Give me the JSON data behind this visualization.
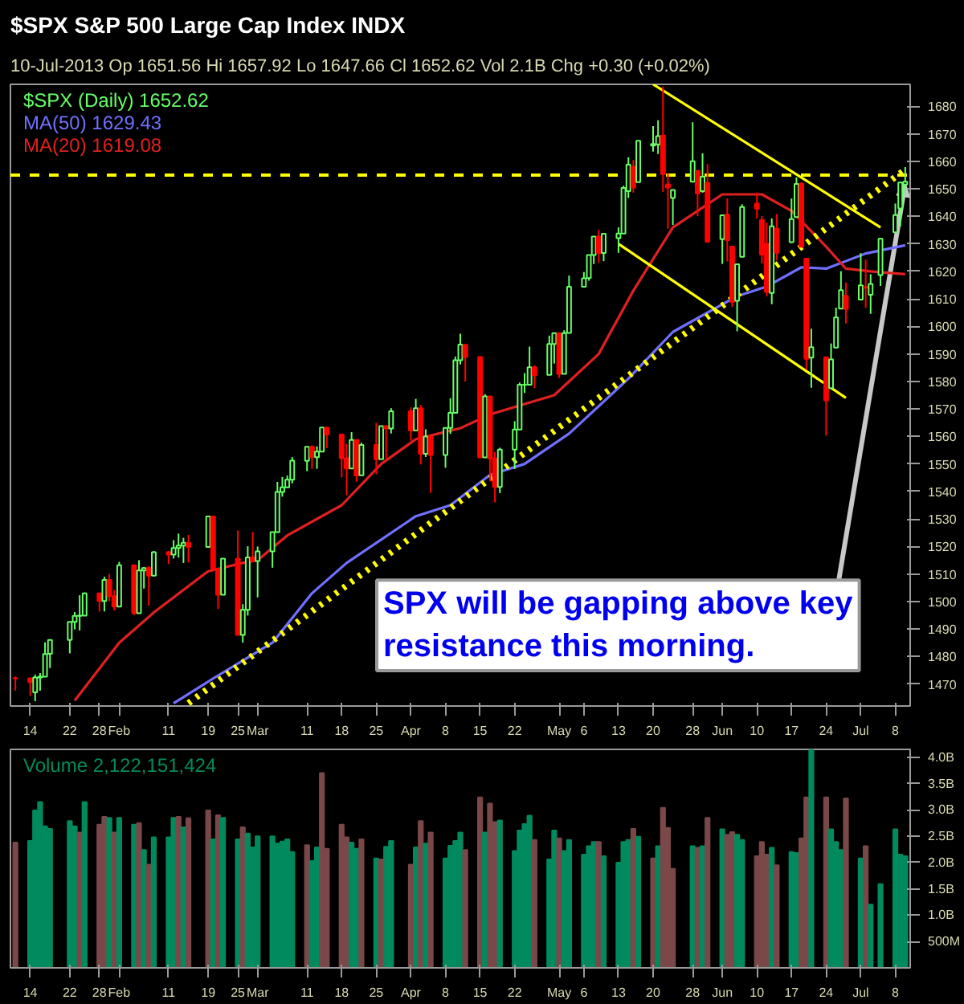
{
  "chart_data": [
    {
      "type": "candlestick",
      "title": "$SPX S&P 500 Large Cap Index INDX",
      "subtitle": "10-Jul-2013 Op 1651.56 Hi 1657.92 Lo 1647.66 Cl 1652.62 Vol 2.1B Chg +0.30 (+0.02%)",
      "x": [
        "2013-01-11",
        "2013-01-14",
        "2013-01-15",
        "2013-01-16",
        "2013-01-17",
        "2013-01-18",
        "2013-01-22",
        "2013-01-23",
        "2013-01-24",
        "2013-01-25",
        "2013-01-28",
        "2013-01-29",
        "2013-01-30",
        "2013-01-31",
        "2013-02-01",
        "2013-02-04",
        "2013-02-05",
        "2013-02-06",
        "2013-02-07",
        "2013-02-08",
        "2013-02-11",
        "2013-02-12",
        "2013-02-13",
        "2013-02-14",
        "2013-02-15",
        "2013-02-19",
        "2013-02-20",
        "2013-02-21",
        "2013-02-22",
        "2013-02-25",
        "2013-02-26",
        "2013-02-27",
        "2013-02-28",
        "2013-03-01",
        "2013-03-04",
        "2013-03-05",
        "2013-03-06",
        "2013-03-07",
        "2013-03-08",
        "2013-03-11",
        "2013-03-12",
        "2013-03-13",
        "2013-03-14",
        "2013-03-15",
        "2013-03-18",
        "2013-03-19",
        "2013-03-20",
        "2013-03-21",
        "2013-03-22",
        "2013-03-25",
        "2013-03-26",
        "2013-03-27",
        "2013-03-28",
        "2013-04-01",
        "2013-04-02",
        "2013-04-03",
        "2013-04-04",
        "2013-04-05",
        "2013-04-08",
        "2013-04-09",
        "2013-04-10",
        "2013-04-11",
        "2013-04-12",
        "2013-04-15",
        "2013-04-16",
        "2013-04-17",
        "2013-04-18",
        "2013-04-19",
        "2013-04-22",
        "2013-04-23",
        "2013-04-24",
        "2013-04-25",
        "2013-04-26",
        "2013-04-29",
        "2013-04-30",
        "2013-05-01",
        "2013-05-02",
        "2013-05-03",
        "2013-05-06",
        "2013-05-07",
        "2013-05-08",
        "2013-05-09",
        "2013-05-10",
        "2013-05-13",
        "2013-05-14",
        "2013-05-15",
        "2013-05-16",
        "2013-05-17",
        "2013-05-20",
        "2013-05-21",
        "2013-05-22",
        "2013-05-23",
        "2013-05-24",
        "2013-05-28",
        "2013-05-29",
        "2013-05-30",
        "2013-05-31",
        "2013-06-03",
        "2013-06-04",
        "2013-06-05",
        "2013-06-06",
        "2013-06-07",
        "2013-06-10",
        "2013-06-11",
        "2013-06-12",
        "2013-06-13",
        "2013-06-14",
        "2013-06-17",
        "2013-06-18",
        "2013-06-19",
        "2013-06-20",
        "2013-06-21",
        "2013-06-24",
        "2013-06-25",
        "2013-06-26",
        "2013-06-27",
        "2013-06-28",
        "2013-07-01",
        "2013-07-02",
        "2013-07-03",
        "2013-07-05",
        "2013-07-08",
        "2013-07-09",
        "2013-07-10"
      ],
      "xticks": [
        {
          "value": "2013-01-14",
          "label": "14"
        },
        {
          "value": "2013-01-22",
          "label": "22"
        },
        {
          "value": "2013-01-28",
          "label": "28"
        },
        {
          "value": "2013-02-01",
          "label": "Feb"
        },
        {
          "value": "2013-02-11",
          "label": "11"
        },
        {
          "value": "2013-02-19",
          "label": "19"
        },
        {
          "value": "2013-02-25",
          "label": "25"
        },
        {
          "value": "2013-03-01",
          "label": "Mar"
        },
        {
          "value": "2013-03-11",
          "label": "11"
        },
        {
          "value": "2013-03-18",
          "label": "18"
        },
        {
          "value": "2013-03-25",
          "label": "25"
        },
        {
          "value": "2013-04-01",
          "label": "Apr"
        },
        {
          "value": "2013-04-08",
          "label": "8"
        },
        {
          "value": "2013-04-15",
          "label": "15"
        },
        {
          "value": "2013-04-22",
          "label": "22"
        },
        {
          "value": "2013-05-01",
          "label": "May"
        },
        {
          "value": "2013-05-06",
          "label": "6"
        },
        {
          "value": "2013-05-13",
          "label": "13"
        },
        {
          "value": "2013-05-20",
          "label": "20"
        },
        {
          "value": "2013-05-28",
          "label": "28"
        },
        {
          "value": "2013-06-03",
          "label": "Jun"
        },
        {
          "value": "2013-06-10",
          "label": "10"
        },
        {
          "value": "2013-06-17",
          "label": "17"
        },
        {
          "value": "2013-06-24",
          "label": "24"
        },
        {
          "value": "2013-07-01",
          "label": "Jul"
        },
        {
          "value": "2013-07-08",
          "label": "8"
        }
      ],
      "xlim": [
        "2013-01-10",
        "2013-07-11"
      ],
      "ylim": [
        1462,
        1688
      ],
      "yticks": [
        1470,
        1480,
        1490,
        1500,
        1510,
        1520,
        1530,
        1540,
        1550,
        1560,
        1570,
        1580,
        1590,
        1600,
        1610,
        1620,
        1630,
        1640,
        1650,
        1660,
        1670,
        1680
      ],
      "legend": "top left",
      "ref_lines": [
        {
          "axis": "y",
          "value": 1655,
          "color": "#ffff00",
          "line_style": "dashed"
        }
      ],
      "annotations": [
        {
          "text": "SPX will be gapping above key resistance this morning.",
          "x": "2013-07-10",
          "y": 1652
        }
      ],
      "series": [
        {
          "type": "line",
          "color": "#7070ff",
          "name": "MA(50) 1629.43",
          "x": [
            "2013-02-12",
            "2013-02-20",
            "2013-03-04",
            "2013-03-12",
            "2013-03-19",
            "2013-04-02",
            "2013-04-09",
            "2013-04-17",
            "2013-04-24",
            "2013-05-03",
            "2013-05-15",
            "2013-05-24",
            "2013-06-06",
            "2013-06-12",
            "2013-06-19",
            "2013-06-24",
            "2013-07-02",
            "2013-07-10"
          ],
          "values": [
            1463,
            1472,
            1485,
            1503,
            1514,
            1531,
            1535,
            1546,
            1550,
            1561,
            1581,
            1598,
            1611,
            1614.5,
            1621.5,
            1621,
            1626.5,
            1629.5
          ]
        },
        {
          "type": "line",
          "color": "#e02020",
          "name": "MA(20) 1619.08",
          "x": [
            "2013-01-23",
            "2013-01-29",
            "2013-02-01",
            "2013-02-08",
            "2013-02-19",
            "2013-02-26",
            "2013-03-01",
            "2013-03-07",
            "2013-03-18",
            "2013-03-26",
            "2013-04-02",
            "2013-04-11",
            "2013-04-17",
            "2013-04-30",
            "2013-05-09",
            "2013-05-16",
            "2013-05-24",
            "2013-06-03",
            "2013-06-11",
            "2013-06-17",
            "2013-06-24",
            "2013-06-28",
            "2013-07-03",
            "2013-07-10"
          ],
          "values": [
            1464,
            1478,
            1485,
            1496,
            1511,
            1514,
            1515,
            1524,
            1535,
            1550,
            1559,
            1563,
            1568,
            1575,
            1590,
            1613,
            1636,
            1648,
            1648,
            1642,
            1629,
            1621,
            1620,
            1619
          ]
        },
        {
          "type": "line",
          "color": "#ffff00",
          "line_style": "dotted",
          "x": [
            "2013-02-15",
            "2013-07-10"
          ],
          "values": [
            1463,
            1657
          ]
        },
        {
          "type": "line",
          "color": "#ffff00",
          "line_style": "solid",
          "x": [
            "2013-05-20",
            "2013-07-05"
          ],
          "values": [
            1688,
            1636
          ]
        },
        {
          "type": "line",
          "color": "#ffff00",
          "line_style": "solid",
          "x": [
            "2013-05-13",
            "2013-06-28"
          ],
          "values": [
            1630,
            1574
          ]
        },
        {
          "type": "candlestick",
          "name": "$SPX (Daily) 1652.62",
          "color": "#66ff66",
          "colors": [
            "#ff0000",
            "#ff0000",
            "#66ff66",
            "#66ff66",
            "#66ff66",
            "#66ff66",
            "#66ff66",
            "#66ff66",
            "#66ff66",
            "#66ff66",
            "#ff0000",
            "#66ff66",
            "#ff0000",
            "#ff0000",
            "#66ff66",
            "#ff0000",
            "#66ff66",
            "#66ff66",
            "#ff0000",
            "#66ff66",
            "#ff0000",
            "#66ff66",
            "#66ff66",
            "#66ff66",
            "#ff0000",
            "#66ff66",
            "#ff0000",
            "#ff0000",
            "#66ff66",
            "#ff0000",
            "#66ff66",
            "#66ff66",
            "#ff0000",
            "#66ff66",
            "#66ff66",
            "#66ff66",
            "#66ff66",
            "#66ff66",
            "#66ff66",
            "#66ff66",
            "#ff0000",
            "#66ff66",
            "#66ff66",
            "#ff0000",
            "#ff0000",
            "#ff0000",
            "#66ff66",
            "#ff0000",
            "#66ff66",
            "#ff0000",
            "#66ff66",
            "#ff0000",
            "#66ff66",
            "#ff0000",
            "#66ff66",
            "#ff0000",
            "#66ff66",
            "#ff0000",
            "#66ff66",
            "#66ff66",
            "#66ff66",
            "#66ff66",
            "#ff0000",
            "#ff0000",
            "#66ff66",
            "#ff0000",
            "#ff0000",
            "#66ff66",
            "#66ff66",
            "#66ff66",
            "#66ff66",
            "#66ff66",
            "#ff0000",
            "#66ff66",
            "#66ff66",
            "#ff0000",
            "#66ff66",
            "#66ff66",
            "#66ff66",
            "#66ff66",
            "#66ff66",
            "#ff0000",
            "#66ff66",
            "#66ff66",
            "#66ff66",
            "#66ff66",
            "#ff0000",
            "#66ff66",
            "#66ff66",
            "#66ff66",
            "#ff0000",
            "#ff0000",
            "#66ff66",
            "#66ff66",
            "#ff0000",
            "#66ff66",
            "#ff0000",
            "#66ff66",
            "#ff0000",
            "#ff0000",
            "#66ff66",
            "#66ff66",
            "#ff0000",
            "#ff0000",
            "#ff0000",
            "#66ff66",
            "#ff0000",
            "#66ff66",
            "#66ff66",
            "#ff0000",
            "#ff0000",
            "#66ff66",
            "#ff0000",
            "#66ff66",
            "#66ff66",
            "#66ff66",
            "#ff0000",
            "#66ff66",
            "#ff0000",
            "#66ff66",
            "#66ff66",
            "#66ff66",
            "#66ff66",
            "#66ff66"
          ],
          "ohlc": [
            [
              1472.12,
              1472.75,
              1467.58,
              1472.05
            ],
            [
              1472.05,
              1472.05,
              1465.69,
              1470.68
            ],
            [
              1466.97,
              1473.41,
              1463.76,
              1472.34
            ],
            [
              1472.33,
              1473.96,
              1467.6,
              1472.63
            ],
            [
              1472.63,
              1485.16,
              1472.63,
              1480.94
            ],
            [
              1480.95,
              1485.98,
              1475.81,
              1485.98
            ],
            [
              1485.98,
              1492.56,
              1481.16,
              1492.56
            ],
            [
              1492.56,
              1496.13,
              1489.9,
              1494.81
            ],
            [
              1494.81,
              1502.27,
              1489.46,
              1494.82
            ],
            [
              1494.82,
              1503.26,
              1494.82,
              1502.96
            ],
            [
              1502.96,
              1503.23,
              1496.33,
              1500.18
            ],
            [
              1500.18,
              1509.0,
              1496.38,
              1507.84
            ],
            [
              1507.84,
              1509.94,
              1500.11,
              1501.96
            ],
            [
              1501.96,
              1504.19,
              1496.76,
              1498.11
            ],
            [
              1498.11,
              1514.41,
              1498.11,
              1513.17
            ],
            [
              1513.17,
              1513.17,
              1495.02,
              1495.71
            ],
            [
              1495.71,
              1514.96,
              1495.71,
              1511.29
            ],
            [
              1511.29,
              1512.53,
              1504.71,
              1512.12
            ],
            [
              1512.12,
              1512.9,
              1498.49,
              1509.39
            ],
            [
              1509.39,
              1518.31,
              1509.39,
              1517.93
            ],
            [
              1517.93,
              1518.31,
              1513.61,
              1517.01
            ],
            [
              1517.01,
              1522.29,
              1515.61,
              1519.43
            ],
            [
              1519.43,
              1524.69,
              1515.93,
              1520.33
            ],
            [
              1520.33,
              1523.14,
              1514.02,
              1521.38
            ],
            [
              1521.38,
              1524.24,
              1514.14,
              1519.79
            ],
            [
              1519.79,
              1530.94,
              1519.79,
              1530.94
            ],
            [
              1530.94,
              1530.94,
              1511.41,
              1511.95
            ],
            [
              1511.95,
              1511.95,
              1497.29,
              1502.42
            ],
            [
              1502.42,
              1515.64,
              1502.42,
              1515.6
            ],
            [
              1515.6,
              1525.84,
              1487.85,
              1487.85
            ],
            [
              1487.85,
              1498.99,
              1485.01,
              1496.94
            ],
            [
              1496.94,
              1520.08,
              1494.88,
              1515.99
            ],
            [
              1515.99,
              1525.34,
              1514.46,
              1514.68
            ],
            [
              1514.68,
              1519.99,
              1501.48,
              1518.2
            ],
            [
              1518.2,
              1525.27,
              1512.29,
              1525.2
            ],
            [
              1525.2,
              1543.47,
              1525.2,
              1539.79
            ],
            [
              1539.79,
              1545.25,
              1538.11,
              1541.46
            ],
            [
              1541.46,
              1545.78,
              1541.46,
              1544.26
            ],
            [
              1544.26,
              1552.48,
              1542.94,
              1551.18
            ],
            [
              1551.15,
              1556.27,
              1547.36,
              1556.22
            ],
            [
              1556.22,
              1556.77,
              1548.24,
              1552.48
            ],
            [
              1552.48,
              1556.39,
              1548.25,
              1554.52
            ],
            [
              1554.52,
              1563.32,
              1554.52,
              1563.23
            ],
            [
              1563.21,
              1563.62,
              1555.74,
              1560.7
            ],
            [
              1560.7,
              1560.7,
              1545.13,
              1552.1
            ],
            [
              1552.1,
              1557.25,
              1538.57,
              1548.34
            ],
            [
              1548.34,
              1561.56,
              1548.34,
              1558.71
            ],
            [
              1558.71,
              1558.71,
              1543.55,
              1545.8
            ],
            [
              1545.9,
              1557.74,
              1545.9,
              1556.89
            ],
            [
              1556.89,
              1564.91,
              1546.22,
              1551.69
            ],
            [
              1551.69,
              1563.95,
              1551.69,
              1563.77
            ],
            [
              1563.75,
              1564.07,
              1551.9,
              1562.85
            ],
            [
              1562.86,
              1570.28,
              1561.08,
              1569.19
            ],
            [
              1569.18,
              1570.57,
              1558.47,
              1562.17
            ],
            [
              1562.17,
              1573.66,
              1562.17,
              1570.25
            ],
            [
              1570.25,
              1571.47,
              1549.8,
              1553.69
            ],
            [
              1553.69,
              1562.6,
              1552.52,
              1559.98
            ],
            [
              1559.98,
              1559.98,
              1539.5,
              1553.28
            ],
            [
              1553.26,
              1563.07,
              1548.63,
              1563.07
            ],
            [
              1563.11,
              1573.89,
              1560.92,
              1568.61
            ],
            [
              1568.61,
              1589.07,
              1568.61,
              1587.73
            ],
            [
              1587.73,
              1597.35,
              1586.17,
              1593.37
            ],
            [
              1593.3,
              1593.3,
              1579.97,
              1588.85
            ],
            [
              1588.84,
              1588.84,
              1552.28,
              1552.36
            ],
            [
              1552.36,
              1575.35,
              1552.36,
              1574.57
            ],
            [
              1574.57,
              1574.57,
              1543.69,
              1552.01
            ],
            [
              1552.03,
              1554.38,
              1536.03,
              1541.61
            ],
            [
              1541.61,
              1555.89,
              1539.4,
              1555.25
            ],
            [
              1555.25,
              1565.55,
              1548.19,
              1562.5
            ],
            [
              1562.5,
              1579.58,
              1562.5,
              1578.78
            ],
            [
              1578.78,
              1583.0,
              1575.8,
              1578.79
            ],
            [
              1578.78,
              1592.64,
              1578.78,
              1585.16
            ],
            [
              1585.16,
              1585.78,
              1577.56,
              1582.24
            ],
            [
              1582.34,
              1596.65,
              1582.34,
              1593.61
            ],
            [
              1593.58,
              1597.57,
              1586.5,
              1597.57
            ],
            [
              1597.55,
              1597.55,
              1581.28,
              1582.7
            ],
            [
              1582.77,
              1598.6,
              1582.77,
              1597.59
            ],
            [
              1597.6,
              1618.46,
              1597.6,
              1614.42
            ],
            [
              1614.4,
              1619.77,
              1614.21,
              1617.5
            ],
            [
              1617.55,
              1626.03,
              1616.64,
              1625.96
            ],
            [
              1625.95,
              1632.78,
              1622.7,
              1632.69
            ],
            [
              1632.69,
              1635.01,
              1623.09,
              1626.67
            ],
            [
              1626.69,
              1633.7,
              1623.71,
              1633.7
            ],
            [
              1632.1,
              1636.0,
              1626.74,
              1633.77
            ],
            [
              1633.75,
              1651.1,
              1633.75,
              1650.34
            ],
            [
              1649.13,
              1661.49,
              1646.68,
              1658.78
            ],
            [
              1658.07,
              1660.51,
              1648.6,
              1650.47
            ],
            [
              1652.45,
              1667.47,
              1652.45,
              1667.47
            ],
            [
              1665.71,
              1672.84,
              1663.52,
              1666.29
            ],
            [
              1666.2,
              1674.93,
              1662.67,
              1669.16
            ],
            [
              1669.39,
              1687.18,
              1648.86,
              1655.35
            ],
            [
              1651.62,
              1655.5,
              1635.53,
              1650.51
            ],
            [
              1646.67,
              1649.78,
              1636.88,
              1649.6
            ],
            [
              1652.63,
              1674.21,
              1652.63,
              1660.06
            ],
            [
              1656.57,
              1656.57,
              1640.05,
              1648.36
            ],
            [
              1649.14,
              1662.91,
              1648.61,
              1654.41
            ],
            [
              1652.13,
              1658.99,
              1630.74,
              1630.74
            ],
            [
              1631.71,
              1640.42,
              1622.72,
              1640.42
            ],
            [
              1640.73,
              1646.53,
              1623.62,
              1631.38
            ],
            [
              1629.05,
              1629.31,
              1607.09,
              1608.9
            ],
            [
              1609.29,
              1622.56,
              1598.23,
              1622.56
            ],
            [
              1625.27,
              1644.4,
              1625.27,
              1643.38
            ],
            [
              1644.67,
              1648.69,
              1639.26,
              1642.81
            ],
            [
              1638.64,
              1640.13,
              1622.92,
              1626.13
            ],
            [
              1629.94,
              1637.71,
              1610.92,
              1612.52
            ],
            [
              1612.15,
              1639.25,
              1608.07,
              1636.36
            ],
            [
              1635.52,
              1640.8,
              1623.96,
              1626.73
            ],
            [
              1630.64,
              1646.5,
              1630.34,
              1639.04
            ],
            [
              1639.77,
              1654.19,
              1639.77,
              1651.81
            ],
            [
              1651.83,
              1652.45,
              1628.91,
              1628.93
            ],
            [
              1624.62,
              1624.62,
              1584.32,
              1588.19
            ],
            [
              1588.62,
              1599.19,
              1577.7,
              1592.43
            ],
            [
              1588.77,
              1588.77,
              1560.33,
              1573.09
            ],
            [
              1577.52,
              1593.79,
              1577.09,
              1588.03
            ],
            [
              1592.27,
              1606.83,
              1592.27,
              1603.26
            ],
            [
              1606.44,
              1620.07,
              1606.44,
              1613.2
            ],
            [
              1611.12,
              1615.94,
              1601.06,
              1606.28
            ],
            [
              1609.78,
              1626.61,
              1609.78,
              1614.96
            ],
            [
              1614.29,
              1624.26,
              1606.77,
              1614.08
            ],
            [
              1611.48,
              1618.97,
              1604.57,
              1615.41
            ],
            [
              1618.65,
              1632.07,
              1614.71,
              1631.89
            ],
            [
              1634.2,
              1644.68,
              1634.2,
              1640.46
            ],
            [
              1642.89,
              1652.48,
              1636.34,
              1652.32
            ],
            [
              1651.56,
              1657.92,
              1647.66,
              1652.62
            ]
          ]
        }
      ]
    },
    {
      "type": "bar",
      "legend": "top left",
      "x": [
        "2013-01-11",
        "2013-01-14",
        "2013-01-15",
        "2013-01-16",
        "2013-01-17",
        "2013-01-18",
        "2013-01-22",
        "2013-01-23",
        "2013-01-24",
        "2013-01-25",
        "2013-01-28",
        "2013-01-29",
        "2013-01-30",
        "2013-01-31",
        "2013-02-01",
        "2013-02-04",
        "2013-02-05",
        "2013-02-06",
        "2013-02-07",
        "2013-02-08",
        "2013-02-11",
        "2013-02-12",
        "2013-02-13",
        "2013-02-14",
        "2013-02-15",
        "2013-02-19",
        "2013-02-20",
        "2013-02-21",
        "2013-02-22",
        "2013-02-25",
        "2013-02-26",
        "2013-02-27",
        "2013-02-28",
        "2013-03-01",
        "2013-03-04",
        "2013-03-05",
        "2013-03-06",
        "2013-03-07",
        "2013-03-08",
        "2013-03-11",
        "2013-03-12",
        "2013-03-13",
        "2013-03-14",
        "2013-03-15",
        "2013-03-18",
        "2013-03-19",
        "2013-03-20",
        "2013-03-21",
        "2013-03-22",
        "2013-03-25",
        "2013-03-26",
        "2013-03-27",
        "2013-03-28",
        "2013-04-01",
        "2013-04-02",
        "2013-04-03",
        "2013-04-04",
        "2013-04-05",
        "2013-04-08",
        "2013-04-09",
        "2013-04-10",
        "2013-04-11",
        "2013-04-12",
        "2013-04-15",
        "2013-04-16",
        "2013-04-17",
        "2013-04-18",
        "2013-04-19",
        "2013-04-22",
        "2013-04-23",
        "2013-04-24",
        "2013-04-25",
        "2013-04-26",
        "2013-04-29",
        "2013-04-30",
        "2013-05-01",
        "2013-05-02",
        "2013-05-03",
        "2013-05-06",
        "2013-05-07",
        "2013-05-08",
        "2013-05-09",
        "2013-05-10",
        "2013-05-13",
        "2013-05-14",
        "2013-05-15",
        "2013-05-16",
        "2013-05-17",
        "2013-05-20",
        "2013-05-21",
        "2013-05-22",
        "2013-05-23",
        "2013-05-24",
        "2013-05-28",
        "2013-05-29",
        "2013-05-30",
        "2013-05-31",
        "2013-06-03",
        "2013-06-04",
        "2013-06-05",
        "2013-06-06",
        "2013-06-07",
        "2013-06-10",
        "2013-06-11",
        "2013-06-12",
        "2013-06-13",
        "2013-06-14",
        "2013-06-17",
        "2013-06-18",
        "2013-06-19",
        "2013-06-20",
        "2013-06-21",
        "2013-06-24",
        "2013-06-25",
        "2013-06-26",
        "2013-06-27",
        "2013-06-28",
        "2013-07-01",
        "2013-07-02",
        "2013-07-03",
        "2013-07-05",
        "2013-07-08",
        "2013-07-09",
        "2013-07-10"
      ],
      "xticks": [
        {
          "value": "2013-01-14",
          "label": "14"
        },
        {
          "value": "2013-01-22",
          "label": "22"
        },
        {
          "value": "2013-01-28",
          "label": "28"
        },
        {
          "value": "2013-02-01",
          "label": "Feb"
        },
        {
          "value": "2013-02-11",
          "label": "11"
        },
        {
          "value": "2013-02-19",
          "label": "19"
        },
        {
          "value": "2013-02-25",
          "label": "25"
        },
        {
          "value": "2013-03-01",
          "label": "Mar"
        },
        {
          "value": "2013-03-11",
          "label": "11"
        },
        {
          "value": "2013-03-18",
          "label": "18"
        },
        {
          "value": "2013-03-25",
          "label": "25"
        },
        {
          "value": "2013-04-01",
          "label": "Apr"
        },
        {
          "value": "2013-04-08",
          "label": "8"
        },
        {
          "value": "2013-04-15",
          "label": "15"
        },
        {
          "value": "2013-04-22",
          "label": "22"
        },
        {
          "value": "2013-05-01",
          "label": "May"
        },
        {
          "value": "2013-05-06",
          "label": "6"
        },
        {
          "value": "2013-05-13",
          "label": "13"
        },
        {
          "value": "2013-05-20",
          "label": "20"
        },
        {
          "value": "2013-05-28",
          "label": "28"
        },
        {
          "value": "2013-06-03",
          "label": "Jun"
        },
        {
          "value": "2013-06-10",
          "label": "10"
        },
        {
          "value": "2013-06-17",
          "label": "17"
        },
        {
          "value": "2013-06-24",
          "label": "24"
        },
        {
          "value": "2013-07-01",
          "label": "Jul"
        },
        {
          "value": "2013-07-08",
          "label": "8"
        }
      ],
      "xlim": [
        "2013-01-10",
        "2013-07-11"
      ],
      "ylim": [
        0,
        4150000000.0
      ],
      "yticks": [
        {
          "value": 500000000.0,
          "label": "500M"
        },
        {
          "value": 1000000000.0,
          "label": "1.0B"
        },
        {
          "value": 1500000000.0,
          "label": "1.5B"
        },
        {
          "value": 2000000000.0,
          "label": "2.0B"
        },
        {
          "value": 2500000000.0,
          "label": "2.5B"
        },
        {
          "value": 3000000000.0,
          "label": "3.0B"
        },
        {
          "value": 3500000000.0,
          "label": "3.5B"
        },
        {
          "value": 4000000000.0,
          "label": "4.0B"
        }
      ],
      "series": [
        {
          "name": "Volume 2,122,151,424",
          "color": "#008a5e",
          "values": [
            2380000000.0,
            2410000000.0,
            2990000000.0,
            3150000000.0,
            2690000000.0,
            2640000000.0,
            2790000000.0,
            2690000000.0,
            2570000000.0,
            3150000000.0,
            2720000000.0,
            2870000000.0,
            2850000000.0,
            2570000000.0,
            2850000000.0,
            2720000000.0,
            2750000000.0,
            2240000000.0,
            1960000000.0,
            2480000000.0,
            2480000000.0,
            2850000000.0,
            2870000000.0,
            2670000000.0,
            2840000000.0,
            2990000000.0,
            2440000000.0,
            2900000000.0,
            2850000000.0,
            2440000000.0,
            2670000000.0,
            2550000000.0,
            2290000000.0,
            2500000000.0,
            2500000000.0,
            2360000000.0,
            2400000000.0,
            2440000000.0,
            2200000000.0,
            2330000000.0,
            2030000000.0,
            2290000000.0,
            3700000000.0,
            2260000000.0,
            2720000000.0,
            2480000000.0,
            2380000000.0,
            2260000000.0,
            2440000000.0,
            2080000000.0,
            2060000000.0,
            2300000000.0,
            2410000000.0,
            1960000000.0,
            2290000000.0,
            2790000000.0,
            2360000000.0,
            2570000000.0,
            2080000000.0,
            2320000000.0,
            2410000000.0,
            2570000000.0,
            2240000000.0,
            3240000000.0,
            2570000000.0,
            3120000000.0,
            2770000000.0,
            2800000000.0,
            2220000000.0,
            2610000000.0,
            2730000000.0,
            2890000000.0,
            2430000000.0,
            2060000000.0,
            2610000000.0,
            2460000000.0,
            2220000000.0,
            2430000000.0,
            2150000000.0,
            2310000000.0,
            2390000000.0,
            2390000000.0,
            2120000000.0,
            2000000000.0,
            2390000000.0,
            2430000000.0,
            2640000000.0,
            2490000000.0,
            2080000000.0,
            2310000000.0,
            3040000000.0,
            2660000000.0,
            1880000000.0,
            2310000000.0,
            2280000000.0,
            2310000000.0,
            2850000000.0,
            2630000000.0,
            2530000000.0,
            2580000000.0,
            2530000000.0,
            2430000000.0,
            2120000000.0,
            2390000000.0,
            2150000000.0,
            2280000000.0,
            1950000000.0,
            2200000000.0,
            2180000000.0,
            2460000000.0,
            3240000000.0,
            4140000000.0,
            3240000000.0,
            2630000000.0,
            2390000000.0,
            2240000000.0,
            3220000000.0,
            2080000000.0,
            2310000000.0,
            1200000000.0,
            1590000000.0,
            2630000000.0,
            2150000000.0,
            2120000000.0
          ],
          "colors": [
            "#7a4848",
            "#008a5e",
            "#008a5e",
            "#008a5e",
            "#008a5e",
            "#008a5e",
            "#008a5e",
            "#008a5e",
            "#7a4848",
            "#008a5e",
            "#7a4848",
            "#7a4848",
            "#008a5e",
            "#7a4848",
            "#008a5e",
            "#008a5e",
            "#7a4848",
            "#008a5e",
            "#7a4848",
            "#008a5e",
            "#008a5e",
            "#008a5e",
            "#7a4848",
            "#008a5e",
            "#7a4848",
            "#7a4848",
            "#008a5e",
            "#7a4848",
            "#008a5e",
            "#008a5e",
            "#7a4848",
            "#008a5e",
            "#008a5e",
            "#008a5e",
            "#008a5e",
            "#008a5e",
            "#008a5e",
            "#008a5e",
            "#008a5e",
            "#7a4848",
            "#008a5e",
            "#008a5e",
            "#7a4848",
            "#7a4848",
            "#7a4848",
            "#7a4848",
            "#008a5e",
            "#008a5e",
            "#7a4848",
            "#008a5e",
            "#7a4848",
            "#008a5e",
            "#008a5e",
            "#7a4848",
            "#008a5e",
            "#7a4848",
            "#008a5e",
            "#7a4848",
            "#008a5e",
            "#008a5e",
            "#008a5e",
            "#008a5e",
            "#7a4848",
            "#7a4848",
            "#008a5e",
            "#7a4848",
            "#7a4848",
            "#008a5e",
            "#008a5e",
            "#008a5e",
            "#008a5e",
            "#008a5e",
            "#7a4848",
            "#008a5e",
            "#008a5e",
            "#7a4848",
            "#008a5e",
            "#008a5e",
            "#008a5e",
            "#008a5e",
            "#008a5e",
            "#7a4848",
            "#008a5e",
            "#008a5e",
            "#008a5e",
            "#008a5e",
            "#7a4848",
            "#008a5e",
            "#7a4848",
            "#008a5e",
            "#7a4848",
            "#7a4848",
            "#7a4848",
            "#008a5e",
            "#7a4848",
            "#008a5e",
            "#7a4848",
            "#008a5e",
            "#7a4848",
            "#7a4848",
            "#008a5e",
            "#008a5e",
            "#7a4848",
            "#7a4848",
            "#7a4848",
            "#008a5e",
            "#7a4848",
            "#008a5e",
            "#008a5e",
            "#7a4848",
            "#7a4848",
            "#008a5e",
            "#7a4848",
            "#008a5e",
            "#008a5e",
            "#008a5e",
            "#7a4848",
            "#008a5e",
            "#7a4848",
            "#008a5e",
            "#008a5e",
            "#008a5e",
            "#008a5e",
            "#008a5e"
          ]
        }
      ]
    }
  ]
}
